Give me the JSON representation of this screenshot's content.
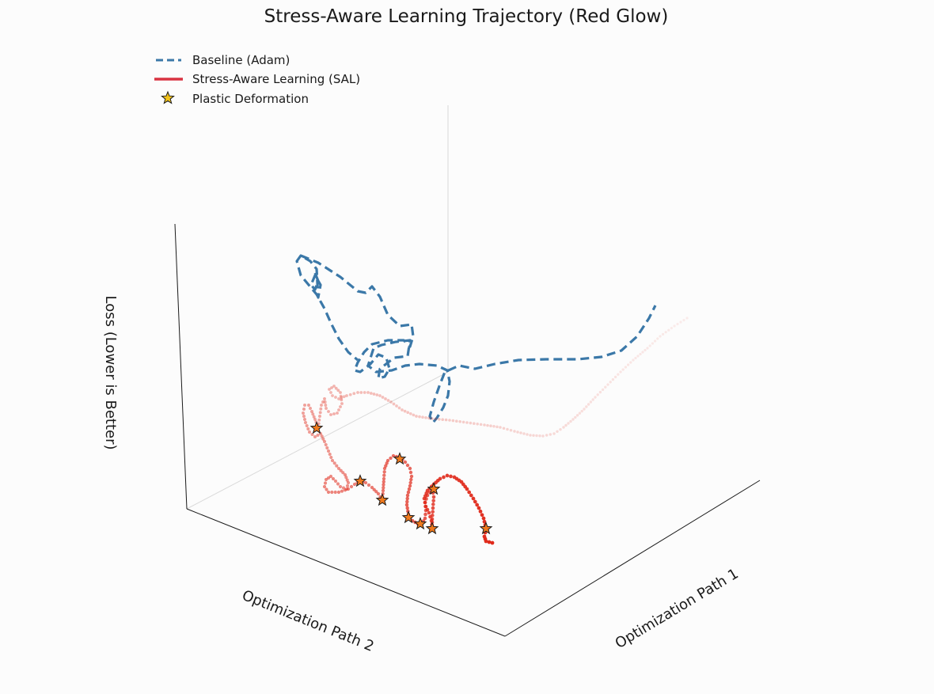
{
  "chart_data": {
    "type": "scatter",
    "title": "Stress-Aware Learning Trajectory (Red Glow)",
    "xlabel": "Optimization Path 1",
    "ylabel": "Optimization Path 2",
    "zlabel": "Loss (Lower is Better)",
    "legend_placement": "top-left",
    "grid": false,
    "colors": {
      "baseline": "#3b78a8",
      "sal": "#e02a1b",
      "star_fill": "#f07a1e",
      "star_legend_fill": "#f2c21a",
      "star_edge": "#1a1a1a",
      "axis": "#1a1a1a"
    },
    "legend": [
      {
        "label": "Baseline (Adam)",
        "icon": "dashed-line-icon",
        "color": "#3b78a8"
      },
      {
        "label": "Stress-Aware Learning (SAL)",
        "icon": "solid-line-icon",
        "color": "#d93341"
      },
      {
        "label": "Plastic Deformation",
        "icon": "star-icon",
        "color": "#f2c21a"
      }
    ],
    "series": [
      {
        "name": "Baseline (Adam)",
        "style": "dashed",
        "points": [
          [
            380,
            323
          ],
          [
            402,
            332
          ],
          [
            430,
            350
          ],
          [
            452,
            368
          ],
          [
            462,
            370
          ],
          [
            470,
            362
          ],
          [
            480,
            375
          ],
          [
            490,
            398
          ],
          [
            505,
            412
          ],
          [
            520,
            410
          ],
          [
            522,
            425
          ],
          [
            518,
            438
          ],
          [
            510,
            430
          ],
          [
            490,
            430
          ],
          [
            470,
            435
          ],
          [
            460,
            445
          ],
          [
            452,
            458
          ],
          [
            448,
            468
          ],
          [
            455,
            470
          ],
          [
            468,
            460
          ],
          [
            478,
            448
          ],
          [
            488,
            452
          ],
          [
            492,
            466
          ],
          [
            486,
            476
          ],
          [
            478,
            478
          ],
          [
            480,
            466
          ],
          [
            498,
            452
          ],
          [
            515,
            450
          ],
          [
            518,
            430
          ],
          [
            500,
            432
          ],
          [
            482,
            436
          ],
          [
            472,
            440
          ],
          [
            465,
            462
          ],
          [
            475,
            470
          ],
          [
            495,
            468
          ],
          [
            512,
            462
          ],
          [
            530,
            460
          ],
          [
            552,
            462
          ],
          [
            565,
            468
          ],
          [
            568,
            482
          ],
          [
            566,
            500
          ],
          [
            560,
            515
          ],
          [
            552,
            528
          ],
          [
            547,
            534
          ],
          [
            543,
            526
          ],
          [
            548,
            508
          ],
          [
            555,
            488
          ],
          [
            562,
            470
          ],
          [
            580,
            462
          ],
          [
            600,
            466
          ],
          [
            625,
            460
          ],
          [
            655,
            455
          ],
          [
            690,
            454
          ],
          [
            730,
            454
          ],
          [
            760,
            451
          ],
          [
            785,
            443
          ],
          [
            805,
            425
          ],
          [
            820,
            402
          ],
          [
            828,
            386
          ]
        ],
        "branch": [
          [
            398,
            345
          ],
          [
            402,
            355
          ],
          [
            398,
            366
          ],
          [
            393,
            360
          ],
          [
            398,
            348
          ],
          [
            405,
            360
          ],
          [
            402,
            376
          ],
          [
            400,
            340
          ],
          [
            392,
            330
          ],
          [
            380,
            323
          ],
          [
            375,
            330
          ],
          [
            380,
            348
          ],
          [
            390,
            360
          ],
          [
            400,
            372
          ],
          [
            410,
            390
          ],
          [
            418,
            408
          ],
          [
            428,
            428
          ],
          [
            440,
            445
          ],
          [
            452,
            455
          ]
        ]
      },
      {
        "name": "Stress-Aware Learning (SAL)",
        "style": "points",
        "segments": [
          [
            [
              868,
              402
            ],
            [
              852,
              412
            ],
            [
              834,
              425
            ],
            [
              818,
              440
            ],
            [
              800,
              455
            ],
            [
              784,
              470
            ],
            [
              768,
              486
            ],
            [
              752,
              502
            ],
            [
              738,
              517
            ],
            [
              724,
              530
            ],
            [
              712,
              540
            ],
            [
              700,
              548
            ],
            [
              686,
              551
            ],
            [
              670,
              550
            ],
            [
              650,
              545
            ],
            [
              632,
              540
            ],
            [
              612,
              537
            ],
            [
              590,
              534
            ],
            [
              568,
              531
            ],
            [
              546,
              529
            ],
            [
              526,
              526
            ],
            [
              508,
              518
            ],
            [
              494,
              508
            ],
            [
              480,
              500
            ],
            [
              465,
              496
            ],
            [
              452,
              496
            ],
            [
              438,
              500
            ],
            [
              428,
              504
            ],
            [
              420,
              500
            ],
            [
              416,
              492
            ],
            [
              422,
              488
            ],
            [
              430,
              496
            ],
            [
              432,
              510
            ],
            [
              426,
              522
            ],
            [
              418,
              524
            ],
            [
              412,
              516
            ],
            [
              410,
              504
            ],
            [
              406,
              512
            ],
            [
              404,
              526
            ],
            [
              402,
              540
            ],
            [
              398,
              530
            ],
            [
              394,
              520
            ],
            [
              390,
              512
            ],
            [
              385,
              512
            ],
            [
              383,
              522
            ],
            [
              386,
              534
            ],
            [
              391,
              546
            ],
            [
              398,
              552
            ],
            [
              405,
              548
            ],
            [
              410,
              558
            ],
            [
              415,
              570
            ],
            [
              420,
              582
            ],
            [
              428,
              592
            ],
            [
              436,
              600
            ],
            [
              440,
              610
            ],
            [
              438,
              618
            ],
            [
              430,
              615
            ],
            [
              424,
              608
            ],
            [
              418,
              602
            ],
            [
              412,
              606
            ],
            [
              410,
              615
            ],
            [
              415,
              622
            ],
            [
              428,
              622
            ],
            [
              440,
              618
            ],
            [
              448,
              612
            ],
            [
              455,
              608
            ],
            [
              462,
              610
            ],
            [
              470,
              616
            ],
            [
              478,
              624
            ],
            [
              483,
              632
            ]
          ],
          [
            [
              483,
              632
            ],
            [
              484,
              620
            ],
            [
              485,
              605
            ],
            [
              486,
              592
            ],
            [
              490,
              582
            ],
            [
              497,
              576
            ],
            [
              505,
              578
            ],
            [
              512,
              584
            ],
            [
              518,
              592
            ],
            [
              520,
              602
            ],
            [
              518,
              614
            ],
            [
              515,
              626
            ],
            [
              514,
              638
            ],
            [
              516,
              650
            ],
            [
              521,
              658
            ],
            [
              528,
              662
            ],
            [
              533,
              662
            ],
            [
              537,
              655
            ],
            [
              538,
              645
            ],
            [
              537,
              635
            ],
            [
              540,
              626
            ],
            [
              546,
              618
            ],
            [
              548,
              628
            ],
            [
              547,
              642
            ],
            [
              546,
              656
            ],
            [
              546,
              668
            ]
          ],
          [
            [
              546,
              668
            ],
            [
              545,
              658
            ],
            [
              542,
              648
            ],
            [
              538,
              640
            ],
            [
              536,
              630
            ],
            [
              540,
              620
            ],
            [
              548,
              612
            ],
            [
              556,
              605
            ],
            [
              565,
              601
            ],
            [
              574,
              603
            ],
            [
              583,
              609
            ],
            [
              590,
              618
            ],
            [
              598,
              630
            ],
            [
              605,
              642
            ],
            [
              611,
              655
            ],
            [
              614,
              668
            ],
            [
              612,
              678
            ],
            [
              614,
              684
            ],
            [
              622,
              686
            ]
          ]
        ]
      }
    ],
    "plastic_deformation": [
      [
        400,
        541
      ],
      [
        455,
        608
      ],
      [
        483,
        632
      ],
      [
        505,
        580
      ],
      [
        548,
        618
      ],
      [
        516,
        654
      ],
      [
        531,
        662
      ],
      [
        546,
        668
      ],
      [
        614,
        668
      ]
    ]
  }
}
